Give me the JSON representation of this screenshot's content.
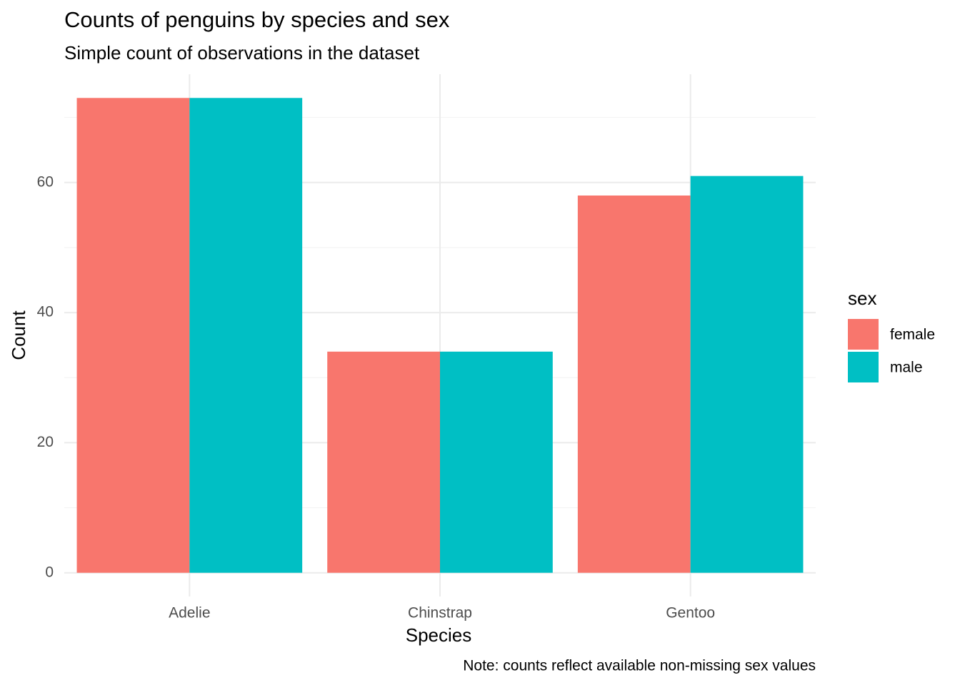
{
  "chart_data": {
    "type": "bar",
    "title": "Counts of penguins by species and sex",
    "subtitle": "Simple count of observations in the dataset",
    "x_label": "Species",
    "y_label": "Count",
    "caption": "Note: counts reflect available non-missing sex values",
    "legend_title": "sex",
    "categories": [
      "Adelie",
      "Chinstrap",
      "Gentoo"
    ],
    "series": [
      {
        "name": "female",
        "color": "#f8766d",
        "values": [
          73,
          34,
          58
        ]
      },
      {
        "name": "male",
        "color": "#00bfc4",
        "values": [
          73,
          34,
          61
        ]
      }
    ],
    "ylim": [
      -3.65,
      76.65
    ],
    "yticks": [
      0,
      20,
      40,
      60
    ],
    "yminor": [
      10,
      30,
      50,
      70
    ],
    "grid": true,
    "legend": "right"
  }
}
